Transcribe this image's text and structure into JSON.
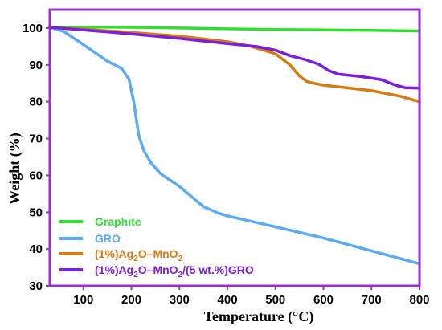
{
  "chart_data": {
    "type": "line",
    "title": "",
    "xlabel": "Temperature (°C)",
    "ylabel": "Weight (%)",
    "xlim": [
      30,
      800
    ],
    "ylim": [
      30,
      105
    ],
    "xticks": [
      100,
      200,
      300,
      400,
      500,
      600,
      700,
      800
    ],
    "yticks": [
      30,
      40,
      50,
      60,
      70,
      80,
      90,
      100
    ],
    "grid": false,
    "legend_position": "bottom-left",
    "frame_color": "#9b30c8",
    "series": [
      {
        "name": "Graphite",
        "color": "#33dd33",
        "x": [
          30,
          100,
          200,
          300,
          400,
          500,
          600,
          700,
          800
        ],
        "y": [
          100.3,
          100.3,
          100.2,
          100.0,
          99.8,
          99.6,
          99.5,
          99.4,
          99.2
        ]
      },
      {
        "name": "GRO",
        "color": "#5aaaf5",
        "x": [
          30,
          60,
          100,
          150,
          180,
          195,
          205,
          215,
          225,
          240,
          260,
          300,
          350,
          380,
          400,
          450,
          500,
          600,
          700,
          800
        ],
        "y": [
          100.2,
          99,
          95.5,
          91,
          89,
          86,
          80,
          71,
          67,
          63.5,
          60.5,
          57,
          51.5,
          49.8,
          49,
          47.5,
          46,
          43,
          39.5,
          36
        ]
      },
      {
        "name": "(1%)Ag2O–MnO2",
        "name_parts": {
          "a": "(1%)Ag",
          "b": "2",
          "c": "O–MnO",
          "d": "2"
        },
        "color": "#d67a12",
        "x": [
          30,
          100,
          200,
          300,
          400,
          450,
          500,
          530,
          550,
          565,
          580,
          600,
          700,
          760,
          800
        ],
        "y": [
          100.2,
          99.7,
          98.8,
          97.8,
          96.3,
          95.0,
          93.0,
          90,
          87,
          85.5,
          85,
          84.5,
          83,
          81.5,
          80
        ]
      },
      {
        "name": "(1%)Ag2O–MnO2/(5 wt.%)GRO",
        "name_parts": {
          "a": "(1%)Ag",
          "b": "2",
          "c": "O–MnO",
          "d": "2",
          "e": "/(5 wt.%)GRO"
        },
        "color": "#7a20d8",
        "x": [
          30,
          100,
          200,
          300,
          400,
          460,
          500,
          530,
          560,
          590,
          610,
          630,
          680,
          720,
          750,
          770,
          800
        ],
        "y": [
          100.2,
          99.5,
          98.4,
          97.2,
          95.8,
          95.0,
          94.0,
          92.5,
          91.5,
          90.2,
          88.5,
          87.5,
          86.8,
          86,
          84.5,
          83.8,
          83.7
        ]
      }
    ]
  }
}
